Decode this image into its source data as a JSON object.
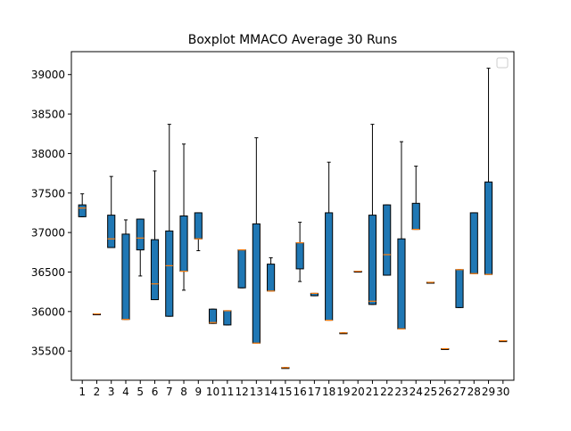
{
  "chart_data": {
    "type": "boxplot",
    "title": "Boxplot MMACO Average 30 Runs",
    "xlabel": "",
    "ylabel": "",
    "categories": [
      "1",
      "2",
      "3",
      "4",
      "5",
      "6",
      "7",
      "8",
      "9",
      "10",
      "11",
      "12",
      "13",
      "14",
      "15",
      "16",
      "17",
      "18",
      "19",
      "20",
      "21",
      "22",
      "23",
      "24",
      "25",
      "26",
      "27",
      "28",
      "29",
      "30"
    ],
    "ylim": [
      35130,
      39290
    ],
    "yticks": [
      35500,
      36000,
      36500,
      37000,
      37500,
      38000,
      38500,
      39000
    ],
    "ytick_labels": [
      "35500",
      "36000",
      "36500",
      "37000",
      "37500",
      "38000",
      "38500",
      "39000"
    ],
    "boxes": [
      {
        "min": 37200,
        "q1": 37200,
        "median": 37310,
        "q3": 37350,
        "max": 37490
      },
      {
        "min": 35970,
        "q1": 35970,
        "median": 35970,
        "q3": 35970,
        "max": 35970
      },
      {
        "min": 36810,
        "q1": 36810,
        "median": 36920,
        "q3": 37220,
        "max": 37710
      },
      {
        "min": 35900,
        "q1": 35900,
        "median": 35900,
        "q3": 36980,
        "max": 37160
      },
      {
        "min": 36450,
        "q1": 36780,
        "median": 36930,
        "q3": 37170,
        "max": 37170
      },
      {
        "min": 36150,
        "q1": 36150,
        "median": 36350,
        "q3": 36910,
        "max": 37780
      },
      {
        "min": 35940,
        "q1": 35940,
        "median": 36580,
        "q3": 37020,
        "max": 38370
      },
      {
        "min": 36270,
        "q1": 36510,
        "median": 36510,
        "q3": 37210,
        "max": 38120
      },
      {
        "min": 36770,
        "q1": 36920,
        "median": 36920,
        "q3": 37250,
        "max": 37250
      },
      {
        "min": 35850,
        "q1": 35850,
        "median": 35860,
        "q3": 36030,
        "max": 36030
      },
      {
        "min": 35830,
        "q1": 35830,
        "median": 36010,
        "q3": 36010,
        "max": 36010
      },
      {
        "min": 36300,
        "q1": 36300,
        "median": 36780,
        "q3": 36780,
        "max": 36780
      },
      {
        "min": 35600,
        "q1": 35600,
        "median": 35600,
        "q3": 37110,
        "max": 38200
      },
      {
        "min": 36260,
        "q1": 36260,
        "median": 36260,
        "q3": 36600,
        "max": 36680
      },
      {
        "min": 35290,
        "q1": 35290,
        "median": 35290,
        "q3": 35290,
        "max": 35290
      },
      {
        "min": 36380,
        "q1": 36540,
        "median": 36870,
        "q3": 36870,
        "max": 37130
      },
      {
        "min": 36200,
        "q1": 36200,
        "median": 36230,
        "q3": 36230,
        "max": 36230
      },
      {
        "min": 35890,
        "q1": 35890,
        "median": 35890,
        "q3": 37250,
        "max": 37890
      },
      {
        "min": 35730,
        "q1": 35730,
        "median": 35730,
        "q3": 35730,
        "max": 35730
      },
      {
        "min": 36510,
        "q1": 36510,
        "median": 36510,
        "q3": 36510,
        "max": 36510
      },
      {
        "min": 36090,
        "q1": 36090,
        "median": 36130,
        "q3": 37220,
        "max": 38370
      },
      {
        "min": 36460,
        "q1": 36460,
        "median": 36720,
        "q3": 37350,
        "max": 37350
      },
      {
        "min": 35780,
        "q1": 35780,
        "median": 35780,
        "q3": 36920,
        "max": 38150
      },
      {
        "min": 37040,
        "q1": 37040,
        "median": 37040,
        "q3": 37370,
        "max": 37840
      },
      {
        "min": 36370,
        "q1": 36370,
        "median": 36370,
        "q3": 36370,
        "max": 36370
      },
      {
        "min": 35530,
        "q1": 35530,
        "median": 35530,
        "q3": 35530,
        "max": 35530
      },
      {
        "min": 36050,
        "q1": 36050,
        "median": 36530,
        "q3": 36530,
        "max": 36530
      },
      {
        "min": 36480,
        "q1": 36480,
        "median": 36480,
        "q3": 37250,
        "max": 37250
      },
      {
        "min": 36470,
        "q1": 36470,
        "median": 36470,
        "q3": 37640,
        "max": 39080
      },
      {
        "min": 35630,
        "q1": 35630,
        "median": 35630,
        "q3": 35630,
        "max": 35630
      }
    ],
    "legend": {
      "placement": "top-right",
      "entries": []
    },
    "grid": false,
    "colors": {
      "box_fill": "#1f77b4",
      "box_edge": "#000000",
      "median": "#ff7f0e",
      "whisker": "#000000",
      "axes": "#000000",
      "legend_edge": "#cccccc"
    }
  }
}
